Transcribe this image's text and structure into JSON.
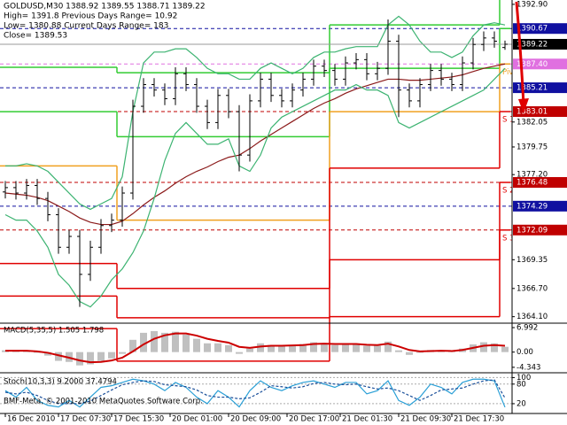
{
  "chart_data": [
    {
      "type": "ohlc",
      "header": [
        "GOLDUSD,M30  1388.92 1389.55 1388.71 1389.22",
        "High= 1391.8   Previous Days Range= 10.92",
        "Low= 1380.88   Current Days Range= 183",
        "Close= 1389.53"
      ],
      "color": "#000000",
      "open": [
        1375.6,
        1376.0,
        1375.5,
        1376.2,
        1375.0,
        1373.5,
        1370.5,
        1371.5,
        1368.0,
        1370.5,
        1372.5,
        1373.0,
        1375.5,
        1383.5,
        1385.5,
        1385.0,
        1384.2,
        1386.5,
        1385.5,
        1383.5,
        1382.0,
        1384.5,
        1383.0,
        1379.0,
        1384.0,
        1386.0,
        1384.5,
        1384.0,
        1385.0,
        1386.0,
        1387.2,
        1386.8,
        1386.0,
        1387.5,
        1387.8,
        1386.5,
        1387.0,
        1389.5,
        1385.0,
        1384.0,
        1385.5,
        1386.8,
        1386.0,
        1385.5,
        1387.5,
        1389.2,
        1389.8,
        1388.92
      ],
      "high": [
        1376.6,
        1376.6,
        1376.8,
        1376.8,
        1375.6,
        1374.1,
        1372.1,
        1372.1,
        1371.1,
        1373.1,
        1373.6,
        1376.1,
        1384.1,
        1386.1,
        1386.1,
        1385.6,
        1387.1,
        1387.1,
        1386.1,
        1384.1,
        1385.1,
        1385.1,
        1383.6,
        1384.6,
        1386.6,
        1386.6,
        1385.1,
        1385.6,
        1386.6,
        1387.8,
        1387.8,
        1387.4,
        1388.1,
        1388.4,
        1388.4,
        1387.6,
        1391.5,
        1390.1,
        1385.6,
        1386.1,
        1387.4,
        1387.4,
        1386.6,
        1388.1,
        1389.8,
        1390.4,
        1390.4,
        1389.55
      ],
      "low": [
        1375.0,
        1374.9,
        1374.9,
        1374.4,
        1372.9,
        1369.9,
        1369.9,
        1365.0,
        1367.4,
        1369.9,
        1371.9,
        1372.4,
        1374.9,
        1382.9,
        1384.4,
        1383.6,
        1383.6,
        1384.9,
        1382.9,
        1381.4,
        1381.4,
        1382.4,
        1377.5,
        1378.4,
        1383.4,
        1383.9,
        1383.4,
        1383.4,
        1384.4,
        1385.4,
        1386.2,
        1385.4,
        1385.4,
        1386.9,
        1385.9,
        1385.9,
        1386.4,
        1382.5,
        1383.4,
        1383.4,
        1384.9,
        1385.4,
        1384.9,
        1384.9,
        1386.9,
        1388.6,
        1388.9,
        1388.71
      ],
      "close": [
        1376.0,
        1375.5,
        1376.2,
        1375.0,
        1373.5,
        1370.5,
        1371.5,
        1368.0,
        1370.5,
        1372.5,
        1373.0,
        1375.5,
        1383.5,
        1385.5,
        1385.0,
        1384.2,
        1386.5,
        1385.5,
        1383.5,
        1382.0,
        1384.5,
        1383.0,
        1379.0,
        1384.0,
        1386.0,
        1384.5,
        1384.0,
        1385.0,
        1386.0,
        1387.2,
        1386.8,
        1386.0,
        1387.5,
        1387.8,
        1386.5,
        1387.0,
        1389.5,
        1385.0,
        1384.0,
        1385.5,
        1386.8,
        1386.0,
        1385.5,
        1387.5,
        1389.2,
        1389.8,
        1389.5,
        1389.22
      ],
      "series": [
        {
          "color": "#8b1a1a",
          "values": [
            1375.5,
            1375.4,
            1375.3,
            1375.1,
            1374.8,
            1374.3,
            1373.8,
            1373.2,
            1372.8,
            1372.6,
            1372.6,
            1372.9,
            1373.6,
            1374.4,
            1375.1,
            1375.7,
            1376.4,
            1377.0,
            1377.5,
            1377.9,
            1378.4,
            1378.8,
            1379.0,
            1379.6,
            1380.3,
            1380.9,
            1381.5,
            1382.1,
            1382.7,
            1383.3,
            1383.8,
            1384.2,
            1384.7,
            1385.1,
            1385.4,
            1385.7,
            1386.0,
            1386.0,
            1385.9,
            1385.9,
            1386.0,
            1386.1,
            1386.2,
            1386.4,
            1386.7,
            1387.0,
            1387.2,
            1387.4
          ]
        },
        {
          "color": "#3cb371",
          "values": [
            1378.0,
            1378.0,
            1378.2,
            1378.0,
            1377.5,
            1376.5,
            1375.5,
            1374.5,
            1374.0,
            1374.5,
            1375.0,
            1377.0,
            1383.0,
            1387.5,
            1388.5,
            1388.5,
            1388.8,
            1388.8,
            1388.0,
            1387.0,
            1386.5,
            1386.5,
            1386.0,
            1386.0,
            1387.0,
            1387.5,
            1387.0,
            1386.5,
            1387.0,
            1388.0,
            1388.5,
            1388.5,
            1388.8,
            1389.0,
            1389.0,
            1389.0,
            1391.0,
            1391.8,
            1391.0,
            1389.5,
            1388.5,
            1388.5,
            1388.0,
            1388.5,
            1390.0,
            1391.0,
            1391.2,
            1391.0
          ]
        },
        {
          "color": "#3cb371",
          "values": [
            1373.5,
            1373.0,
            1373.0,
            1372.0,
            1370.5,
            1368.0,
            1367.0,
            1365.5,
            1365.0,
            1366.0,
            1367.5,
            1368.5,
            1370.0,
            1372.0,
            1375.0,
            1378.5,
            1381.0,
            1382.0,
            1381.0,
            1380.0,
            1380.0,
            1380.5,
            1378.0,
            1377.5,
            1379.0,
            1381.5,
            1382.5,
            1383.0,
            1383.5,
            1384.0,
            1384.5,
            1385.0,
            1385.0,
            1385.5,
            1385.0,
            1385.0,
            1384.5,
            1382.0,
            1381.5,
            1382.0,
            1382.5,
            1383.0,
            1383.5,
            1384.0,
            1384.5,
            1385.0,
            1386.0,
            1387.0
          ]
        }
      ],
      "day_breaks": [
        10.5,
        30.5,
        46.5
      ],
      "levels": [
        {
          "color": "#33cc33",
          "values": [
            1387.1,
            1386.6,
            1391.0,
            1393.5
          ]
        },
        {
          "color": "#33cc33",
          "values": [
            1383.0,
            1380.7,
            1387.0,
            1390.67
          ]
        },
        {
          "color": "#f0a020",
          "label": "Pivot",
          "values": [
            1378.0,
            1373.0,
            1383.0,
            1387.4
          ]
        },
        {
          "color": "#e00000",
          "label": "S 1",
          "values": [
            1369.0,
            1366.7,
            1377.8,
            1383.01
          ]
        },
        {
          "color": "#e00000",
          "label": "S 2",
          "values": [
            1366.0,
            1364.0,
            1369.35,
            1376.48
          ]
        },
        {
          "color": "#e00000",
          "label": "S 3",
          "values": [
            1363.0,
            1360.0,
            1364.1,
            1372.09
          ]
        }
      ],
      "hlines": [
        {
          "value": 1390.67,
          "color": "#1010a0"
        },
        {
          "value": 1387.4,
          "label": "1387.40",
          "color": "#e070e0"
        },
        {
          "value": 1385.21,
          "color": "#1010a0"
        },
        {
          "value": 1383.01,
          "color": "#c00000"
        },
        {
          "value": 1376.48,
          "color": "#c00000"
        },
        {
          "value": 1374.29,
          "color": "#1010a0"
        },
        {
          "value": 1372.09,
          "color": "#c00000"
        }
      ],
      "ylim": [
        1363.5,
        1393.3
      ],
      "yticks": [
        {
          "value": 1392.9,
          "label": "1392.90"
        },
        1382.05,
        1379.75,
        {
          "value": 1377.2,
          "label": "1377.20"
        },
        1369.35,
        {
          "value": 1366.7,
          "label": "1366.70"
        },
        {
          "value": 1364.1,
          "label": "1364.10"
        }
      ]
    },
    {
      "type": "macd",
      "title": "MACD(5,35,5) 1.505 1.798",
      "series": [
        {
          "color": "#c0c0c0",
          "values": [
            0.5,
            0.3,
            0.4,
            -0.2,
            -1.0,
            -2.5,
            -2.8,
            -3.8,
            -3.5,
            -2.5,
            -1.8,
            -0.5,
            3.5,
            5.5,
            6.0,
            5.5,
            5.8,
            5.0,
            3.8,
            2.5,
            2.5,
            2.0,
            -0.5,
            1.0,
            2.5,
            2.0,
            1.8,
            2.0,
            2.3,
            2.8,
            2.5,
            2.0,
            2.3,
            2.4,
            1.8,
            1.8,
            3.0,
            0.5,
            -0.8,
            -0.2,
            0.6,
            0.5,
            0.2,
            1.0,
            2.2,
            2.8,
            2.5,
            1.505
          ]
        },
        {
          "color": "#cc0000",
          "values": [
            0.4,
            0.4,
            0.4,
            0.2,
            -0.2,
            -0.9,
            -1.6,
            -2.4,
            -2.9,
            -2.8,
            -2.4,
            -1.6,
            0.2,
            2.2,
            3.8,
            4.8,
            5.3,
            5.3,
            4.7,
            3.8,
            3.2,
            2.7,
            1.5,
            1.2,
            1.6,
            1.8,
            1.8,
            1.9,
            2.0,
            2.3,
            2.4,
            2.3,
            2.3,
            2.3,
            2.1,
            2.0,
            2.4,
            1.6,
            0.6,
            0.2,
            0.3,
            0.4,
            0.3,
            0.6,
            1.2,
            1.8,
            2.0,
            1.798
          ]
        }
      ],
      "ylim": [
        -5.9,
        8.0
      ],
      "yticks": [
        6.992,
        {
          "value": 0,
          "label": "0.00"
        },
        -4.343
      ]
    },
    {
      "type": "stoch",
      "title": "Stoch(10,3,3) 9.2000 37.4794",
      "footer": "BMF-Meta, © 2001-2010 MetaQuotes Software Corp.",
      "series": [
        {
          "color": "#2a9fd6",
          "values": [
            60,
            40,
            70,
            30,
            15,
            10,
            30,
            10,
            40,
            70,
            75,
            85,
            95,
            90,
            80,
            60,
            85,
            70,
            40,
            20,
            60,
            40,
            10,
            60,
            90,
            70,
            60,
            75,
            85,
            90,
            80,
            70,
            85,
            85,
            50,
            60,
            90,
            30,
            15,
            40,
            80,
            70,
            50,
            85,
            95,
            95,
            90,
            9.2
          ]
        },
        {
          "color": "#1a4f9a",
          "dashed": true,
          "values": [
            55,
            50,
            55,
            45,
            30,
            20,
            20,
            20,
            28,
            45,
            62,
            78,
            85,
            90,
            88,
            78,
            75,
            72,
            62,
            45,
            40,
            40,
            35,
            38,
            55,
            75,
            72,
            68,
            72,
            82,
            85,
            80,
            78,
            80,
            72,
            65,
            68,
            60,
            45,
            30,
            45,
            62,
            65,
            68,
            80,
            90,
            93,
            37.4794
          ]
        }
      ],
      "ylim": [
        -10,
        112
      ],
      "yticks": [
        100,
        80,
        20
      ],
      "xticks": [
        {
          "value": 0,
          "label": "16 Dec 2010"
        },
        {
          "value": 5,
          "label": "17 Dec 07:30"
        },
        {
          "value": 10,
          "label": "17 Dec 15:30"
        },
        {
          "value": 15.5,
          "label": "20 Dec 01:00"
        },
        {
          "value": 21,
          "label": "20 Dec 09:00"
        },
        {
          "value": 26.5,
          "label": "20 Dec 17:00"
        },
        {
          "value": 31.5,
          "label": "21 Dec 01:30"
        },
        {
          "value": 37,
          "label": "21 Dec 09:30"
        },
        {
          "value": 42,
          "label": "21 Dec 17:30"
        }
      ]
    }
  ]
}
